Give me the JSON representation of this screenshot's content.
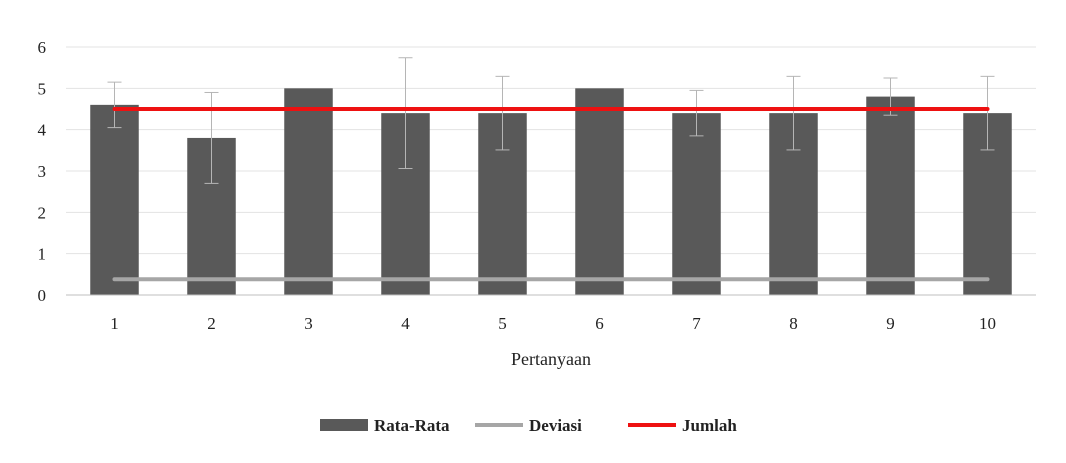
{
  "chart_data": {
    "type": "bar",
    "title": "",
    "xlabel": "Pertanyaan",
    "ylabel": "",
    "ylim": [
      0,
      6
    ],
    "yticks": [
      0,
      1,
      2,
      3,
      4,
      5,
      6
    ],
    "grid": true,
    "legend_position": "bottom",
    "categories": [
      "1",
      "2",
      "3",
      "4",
      "5",
      "6",
      "7",
      "8",
      "9",
      "10"
    ],
    "series": [
      {
        "name": "Rata-Rata",
        "kind": "bar",
        "color": "#595959",
        "values": [
          4.6,
          3.8,
          5.0,
          4.4,
          4.4,
          5.0,
          4.4,
          4.4,
          4.8,
          4.4
        ],
        "error": [
          0.55,
          1.1,
          0.0,
          1.34,
          0.89,
          0.0,
          0.55,
          0.89,
          0.45,
          0.89
        ]
      },
      {
        "name": "Deviasi",
        "kind": "line",
        "color": "#a6a6a6",
        "values": [
          0.38,
          0.38,
          0.38,
          0.38,
          0.38,
          0.38,
          0.38,
          0.38,
          0.38,
          0.38
        ]
      },
      {
        "name": "Jumlah",
        "kind": "line",
        "color": "#ee1111",
        "values": [
          4.5,
          4.5,
          4.5,
          4.5,
          4.5,
          4.5,
          4.5,
          4.5,
          4.5,
          4.5
        ]
      }
    ]
  }
}
